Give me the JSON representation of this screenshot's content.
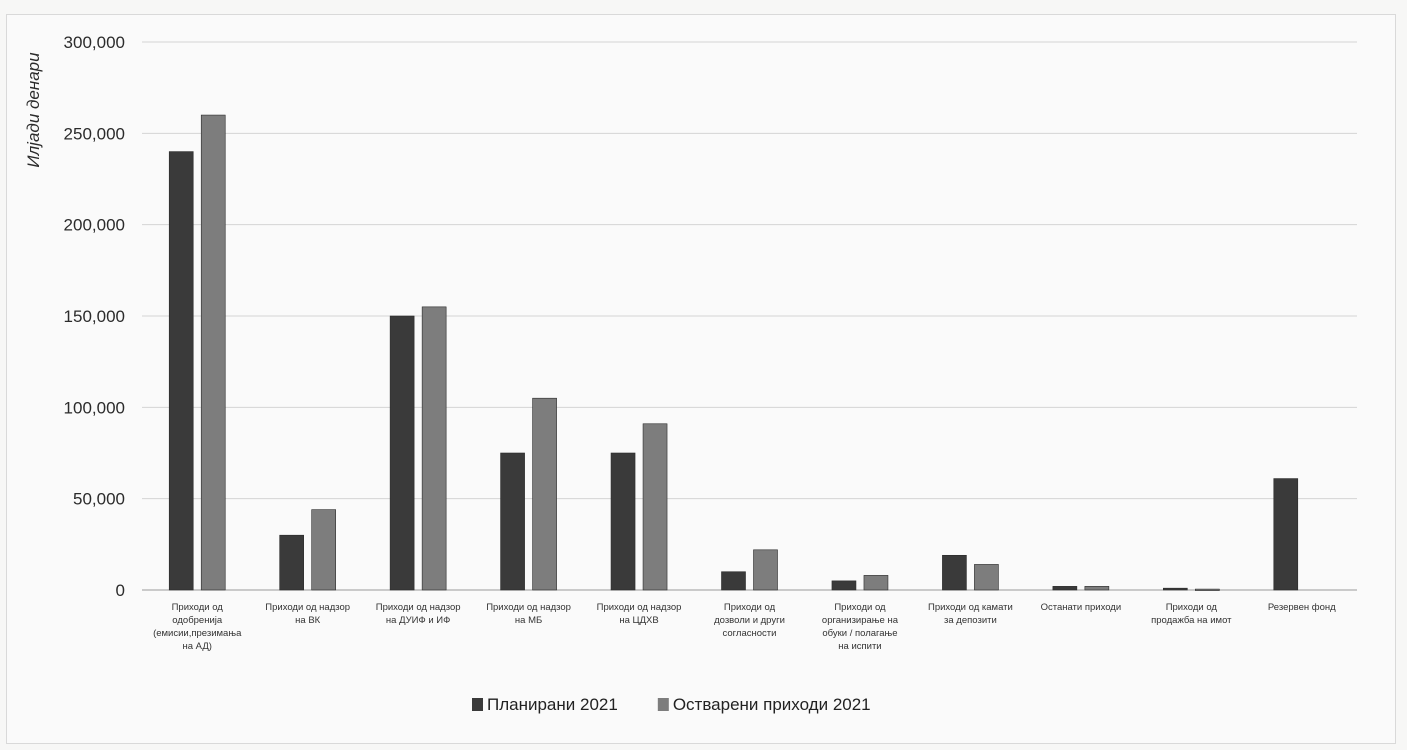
{
  "chart_data": {
    "type": "bar",
    "ylabel": "Илјади денари",
    "ylim": [
      0,
      300000
    ],
    "yticks": [
      0,
      50000,
      100000,
      150000,
      200000,
      250000,
      300000
    ],
    "ytick_labels": [
      "0",
      "50,000",
      "100,000",
      "150,000",
      "200,000",
      "250,000",
      "300,000"
    ],
    "grid": true,
    "legend_position": "bottom",
    "categories": [
      [
        "Приходи од",
        "одобренија",
        "(емисии,презимања",
        "на АД)"
      ],
      [
        "Приходи од надзор",
        "на ВК"
      ],
      [
        "Приходи од надзор",
        "на ДУИФ и ИФ"
      ],
      [
        "Приходи од надзор",
        "на МБ"
      ],
      [
        "Приходи од надзор",
        "на ЦДХВ"
      ],
      [
        "Приходи од",
        "дозволи и други",
        "согласности"
      ],
      [
        "Приходи од",
        "организирање на",
        "обуки / полагање",
        "на испити"
      ],
      [
        "Приходи од камати",
        "за депозити"
      ],
      [
        "Останати приходи"
      ],
      [
        "Приходи од",
        "продажба на имот"
      ],
      [
        "Резервен фонд"
      ]
    ],
    "series": [
      {
        "name": "Планирани 2021",
        "color": "#3a3a3a",
        "values": [
          240000,
          30000,
          150000,
          75000,
          75000,
          10000,
          5000,
          19000,
          2000,
          1000,
          61000
        ]
      },
      {
        "name": "Остварени приходи 2021",
        "color": "#7d7d7d",
        "values": [
          260000,
          44000,
          155000,
          105000,
          91000,
          22000,
          8000,
          14000,
          2000,
          500,
          0
        ]
      }
    ]
  }
}
